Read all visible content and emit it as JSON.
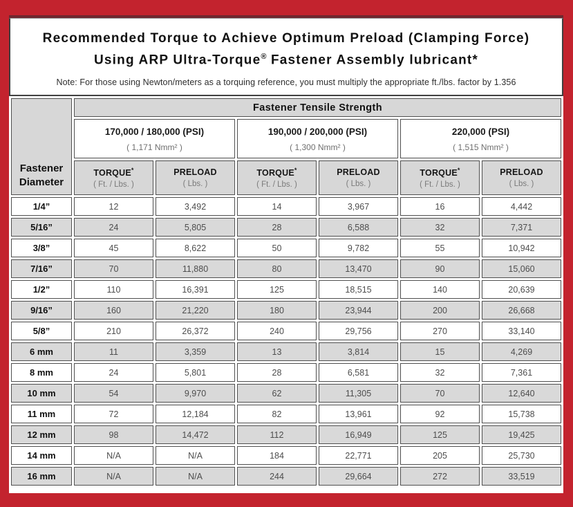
{
  "colors": {
    "frame_red": "#c3232e",
    "frame_accent_maroon": "#6f272f",
    "cell_shade_gray": "#d9d9d9",
    "cell_border_gray": "#4f4f4f"
  },
  "title": {
    "line1": "Recommended Torque to Achieve Optimum Preload (Clamping Force)",
    "line2_pre": "Using ARP Ultra-Torque",
    "line2_sym": "®",
    "line2_post": " Fastener Assembly lubricant*",
    "note": "Note: For those using Newton/meters as a torquing reference, you must multiply the appropriate ft./lbs. factor by 1.356"
  },
  "table": {
    "corner_line1": "Fastener",
    "corner_line2": "Diameter",
    "tensile_header": "Fastener Tensile Strength",
    "groups": [
      {
        "psi": "170,000 / 180,000 (PSI)",
        "nmm": "( 1,171 Nmm² )"
      },
      {
        "psi": "190,000 / 200,000 (PSI)",
        "nmm": "( 1,300 Nmm² )"
      },
      {
        "psi": "220,000 (PSI)",
        "nmm": "( 1,515 Nmm² )"
      }
    ],
    "sub": {
      "torque_label": "TORQUE",
      "torque_sup": "*",
      "torque_unit": "( Ft. / Lbs. )",
      "preload_label": "PRELOAD",
      "preload_unit": "( Lbs. )"
    },
    "rows": [
      {
        "diameter": "1/4”",
        "values": [
          "12",
          "3,492",
          "14",
          "3,967",
          "16",
          "4,442"
        ]
      },
      {
        "diameter": "5/16”",
        "values": [
          "24",
          "5,805",
          "28",
          "6,588",
          "32",
          "7,371"
        ]
      },
      {
        "diameter": "3/8”",
        "values": [
          "45",
          "8,622",
          "50",
          "9,782",
          "55",
          "10,942"
        ]
      },
      {
        "diameter": "7/16”",
        "values": [
          "70",
          "11,880",
          "80",
          "13,470",
          "90",
          "15,060"
        ]
      },
      {
        "diameter": "1/2”",
        "values": [
          "110",
          "16,391",
          "125",
          "18,515",
          "140",
          "20,639"
        ]
      },
      {
        "diameter": "9/16”",
        "values": [
          "160",
          "21,220",
          "180",
          "23,944",
          "200",
          "26,668"
        ]
      },
      {
        "diameter": "5/8”",
        "values": [
          "210",
          "26,372",
          "240",
          "29,756",
          "270",
          "33,140"
        ]
      },
      {
        "diameter": "6 mm",
        "values": [
          "11",
          "3,359",
          "13",
          "3,814",
          "15",
          "4,269"
        ]
      },
      {
        "diameter": "8 mm",
        "values": [
          "24",
          "5,801",
          "28",
          "6,581",
          "32",
          "7,361"
        ]
      },
      {
        "diameter": "10 mm",
        "values": [
          "54",
          "9,970",
          "62",
          "11,305",
          "70",
          "12,640"
        ]
      },
      {
        "diameter": "11 mm",
        "values": [
          "72",
          "12,184",
          "82",
          "13,961",
          "92",
          "15,738"
        ]
      },
      {
        "diameter": "12 mm",
        "values": [
          "98",
          "14,472",
          "112",
          "16,949",
          "125",
          "19,425"
        ]
      },
      {
        "diameter": "14 mm",
        "values": [
          "N/A",
          "N/A",
          "184",
          "22,771",
          "205",
          "25,730"
        ]
      },
      {
        "diameter": "16 mm",
        "values": [
          "N/A",
          "N/A",
          "244",
          "29,664",
          "272",
          "33,519"
        ]
      }
    ]
  }
}
